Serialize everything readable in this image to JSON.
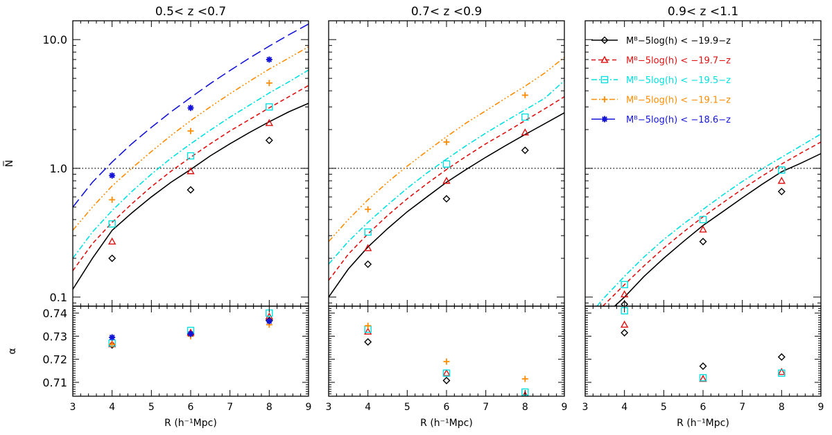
{
  "chart_data": {
    "type": "scatter",
    "description_axes": {
      "xlabel": "R (h⁻¹Mpc)",
      "ylabel_top": "N̅",
      "ylabel_bottom": "α",
      "xlim": [
        3,
        9
      ],
      "ylim_top": [
        0.085,
        14
      ],
      "yscale_top": "log",
      "ylim_bottom": [
        0.704,
        0.743
      ],
      "x_ticks": [
        3,
        4,
        5,
        6,
        7,
        8,
        9
      ],
      "x_tick_labels": [
        "3",
        "4",
        "5",
        "6",
        "7",
        "8",
        "9"
      ],
      "y_ticks_top": [
        0.1,
        1.0,
        10.0
      ],
      "y_tick_labels_top": [
        "0.1",
        "1.0",
        "10.0"
      ],
      "y_ticks_bottom": [
        0.71,
        0.72,
        0.73,
        0.74
      ],
      "y_tick_labels_bottom": [
        "0.71",
        "0.72",
        "0.73",
        "0.74"
      ],
      "reference_line_top": 1.0
    },
    "series_styles": [
      {
        "key": "s199",
        "color": "#000000",
        "marker": "diamond",
        "dash": "",
        "legend": "Mᴮ−5log(h) < −19.9−z"
      },
      {
        "key": "s197",
        "color": "#e01010",
        "marker": "triangle",
        "dash": "6,4",
        "legend": "Mᴮ−5log(h) < −19.7−z"
      },
      {
        "key": "s195",
        "color": "#00e0e0",
        "marker": "square",
        "dash": "8,3,2,3",
        "legend": "Mᴮ−5log(h) < −19.5−z"
      },
      {
        "key": "s191",
        "color": "#ff8c00",
        "marker": "plus",
        "dash": "8,3,2,3,2,3,2,3",
        "legend": "Mᴮ−5log(h) < −19.1−z"
      },
      {
        "key": "s186",
        "color": "#1414d8",
        "marker": "asterisk",
        "dash": "14,6",
        "legend": "Mᴮ−5log(h) < −18.6−z"
      }
    ],
    "panels": [
      {
        "title": "0.5< z <0.7",
        "curves": [
          {
            "key": "s199",
            "x": [
              3,
              3.5,
              4,
              4.5,
              5,
              5.5,
              6,
              6.5,
              7,
              7.5,
              8,
              8.5,
              9
            ],
            "y": [
              0.115,
              0.2,
              0.33,
              0.45,
              0.6,
              0.78,
              0.98,
              1.25,
              1.55,
              1.9,
              2.3,
              2.75,
              3.2
            ]
          },
          {
            "key": "s197",
            "x": [
              3,
              3.5,
              4,
              4.5,
              5,
              5.5,
              6,
              6.5,
              7,
              7.5,
              8,
              8.5,
              9
            ],
            "y": [
              0.16,
              0.26,
              0.38,
              0.53,
              0.72,
              0.95,
              1.22,
              1.55,
              1.95,
              2.4,
              2.95,
              3.6,
              4.4
            ]
          },
          {
            "key": "s195",
            "x": [
              3,
              3.5,
              4,
              4.5,
              5,
              5.5,
              6,
              6.5,
              7,
              7.5,
              8,
              8.5,
              9
            ],
            "y": [
              0.2,
              0.32,
              0.47,
              0.66,
              0.9,
              1.2,
              1.55,
              1.98,
              2.5,
              3.1,
              3.85,
              4.7,
              5.8
            ]
          },
          {
            "key": "s191",
            "x": [
              3,
              3.5,
              4,
              4.5,
              5,
              5.5,
              6,
              6.5,
              7,
              7.5,
              8,
              8.5,
              9
            ],
            "y": [
              0.33,
              0.5,
              0.73,
              1.0,
              1.35,
              1.8,
              2.35,
              3.0,
              3.8,
              4.75,
              5.9,
              7.2,
              8.8
            ]
          },
          {
            "key": "s186",
            "x": [
              3,
              3.5,
              4,
              4.5,
              5,
              5.5,
              6,
              6.5,
              7,
              7.5,
              8,
              8.5,
              9
            ],
            "y": [
              0.5,
              0.78,
              1.12,
              1.55,
              2.08,
              2.75,
              3.55,
              4.55,
              5.75,
              7.2,
              8.9,
              10.9,
              13.2
            ]
          }
        ],
        "points": [
          {
            "key": "s199",
            "x": [
              4,
              6,
              8
            ],
            "n": [
              0.2,
              0.68,
              1.65
            ],
            "alpha": [
              0.7262,
              0.731,
              0.7368
            ]
          },
          {
            "key": "s197",
            "x": [
              4,
              6,
              8
            ],
            "n": [
              0.27,
              0.95,
              2.25
            ],
            "alpha": [
              0.7265,
              0.7315,
              0.7385
            ]
          },
          {
            "key": "s195",
            "x": [
              4,
              6,
              8
            ],
            "n": [
              0.37,
              1.25,
              3.0
            ],
            "alpha": [
              0.727,
              0.7325,
              0.74
            ]
          },
          {
            "key": "s191",
            "x": [
              4,
              6,
              8
            ],
            "n": [
              0.57,
              1.95,
              4.6
            ],
            "alpha": [
              0.7265,
              0.73,
              0.735
            ]
          },
          {
            "key": "s186",
            "x": [
              4,
              6,
              8
            ],
            "n": [
              0.88,
              2.95,
              7.0
            ],
            "alpha": [
              0.7295,
              0.731,
              0.7365
            ]
          }
        ]
      },
      {
        "title": "0.7< z <0.9",
        "curves": [
          {
            "key": "s199",
            "x": [
              3,
              3.5,
              4,
              4.5,
              5,
              5.5,
              6,
              6.5,
              7,
              7.5,
              8,
              8.5,
              9
            ],
            "y": [
              0.1,
              0.165,
              0.245,
              0.34,
              0.46,
              0.6,
              0.78,
              0.98,
              1.22,
              1.5,
              1.83,
              2.22,
              2.7
            ]
          },
          {
            "key": "s197",
            "x": [
              3,
              3.5,
              4,
              4.5,
              5,
              5.5,
              6,
              6.5,
              7,
              7.5,
              8,
              8.5,
              9
            ],
            "y": [
              0.135,
              0.215,
              0.31,
              0.43,
              0.58,
              0.76,
              0.98,
              1.24,
              1.55,
              1.9,
              2.35,
              2.9,
              3.6
            ]
          },
          {
            "key": "s195",
            "x": [
              3,
              3.5,
              4,
              4.5,
              5,
              5.5,
              6,
              6.5,
              7,
              7.5,
              8,
              8.5,
              9
            ],
            "y": [
              0.18,
              0.27,
              0.38,
              0.52,
              0.7,
              0.92,
              1.18,
              1.5,
              1.88,
              2.32,
              2.85,
              3.5,
              4.8
            ]
          },
          {
            "key": "s191",
            "x": [
              3,
              3.5,
              4,
              4.5,
              5,
              5.5,
              6,
              6.5,
              7,
              7.5,
              8,
              8.5,
              9
            ],
            "y": [
              0.27,
              0.4,
              0.57,
              0.78,
              1.04,
              1.36,
              1.76,
              2.25,
              2.8,
              3.5,
              4.35,
              5.5,
              7.3
            ]
          }
        ],
        "points": [
          {
            "key": "s199",
            "x": [
              4,
              6,
              8
            ],
            "n": [
              0.18,
              0.58,
              1.38
            ],
            "alpha": [
              0.7275,
              0.7108,
              0.704
            ]
          },
          {
            "key": "s197",
            "x": [
              4,
              6,
              8
            ],
            "n": [
              0.24,
              0.8,
              1.9
            ],
            "alpha": [
              0.732,
              0.714,
              0.7045
            ]
          },
          {
            "key": "s195",
            "x": [
              4,
              6,
              8
            ],
            "n": [
              0.32,
              1.08,
              2.5
            ],
            "alpha": [
              0.733,
              0.714,
              0.7058
            ]
          },
          {
            "key": "s191",
            "x": [
              4,
              6,
              8
            ],
            "n": [
              0.48,
              1.6,
              3.7
            ],
            "alpha": [
              0.7345,
              0.719,
              0.7115
            ]
          }
        ]
      },
      {
        "title": "0.9< z <1.1",
        "curves": [
          {
            "key": "s199",
            "x": [
              3.75,
              4,
              4.5,
              5,
              5.5,
              6,
              6.5,
              7,
              7.5,
              8,
              8.5,
              9
            ],
            "y": [
              0.085,
              0.1,
              0.145,
              0.2,
              0.27,
              0.36,
              0.46,
              0.59,
              0.75,
              0.94,
              1.1,
              1.3
            ]
          },
          {
            "key": "s197",
            "x": [
              3.45,
              3.5,
              4,
              4.5,
              5,
              5.5,
              6,
              6.5,
              7,
              7.5,
              8,
              8.5,
              9
            ],
            "y": [
              0.085,
              0.088,
              0.125,
              0.175,
              0.24,
              0.32,
              0.42,
              0.54,
              0.69,
              0.87,
              1.08,
              1.32,
              1.6
            ]
          },
          {
            "key": "s195",
            "x": [
              3.3,
              3.5,
              4,
              4.5,
              5,
              5.5,
              6,
              6.5,
              7,
              7.5,
              8,
              8.5,
              9
            ],
            "y": [
              0.085,
              0.1,
              0.145,
              0.205,
              0.28,
              0.37,
              0.48,
              0.62,
              0.79,
              0.99,
              1.22,
              1.5,
              1.85
            ]
          }
        ],
        "points": [
          {
            "key": "s199",
            "x": [
              4,
              6,
              8
            ],
            "n": [
              0.088,
              0.27,
              0.66
            ],
            "alpha": [
              0.7315,
              0.717,
              0.721
            ]
          },
          {
            "key": "s197",
            "x": [
              4,
              6,
              8
            ],
            "n": [
              0.105,
              0.335,
              0.8
            ],
            "alpha": [
              0.735,
              0.7115,
              0.7145
            ]
          },
          {
            "key": "s195",
            "x": [
              4,
              6,
              8
            ],
            "n": [
              0.125,
              0.4,
              0.97
            ],
            "alpha": [
              0.741,
              0.712,
              0.714
            ]
          }
        ]
      }
    ]
  }
}
